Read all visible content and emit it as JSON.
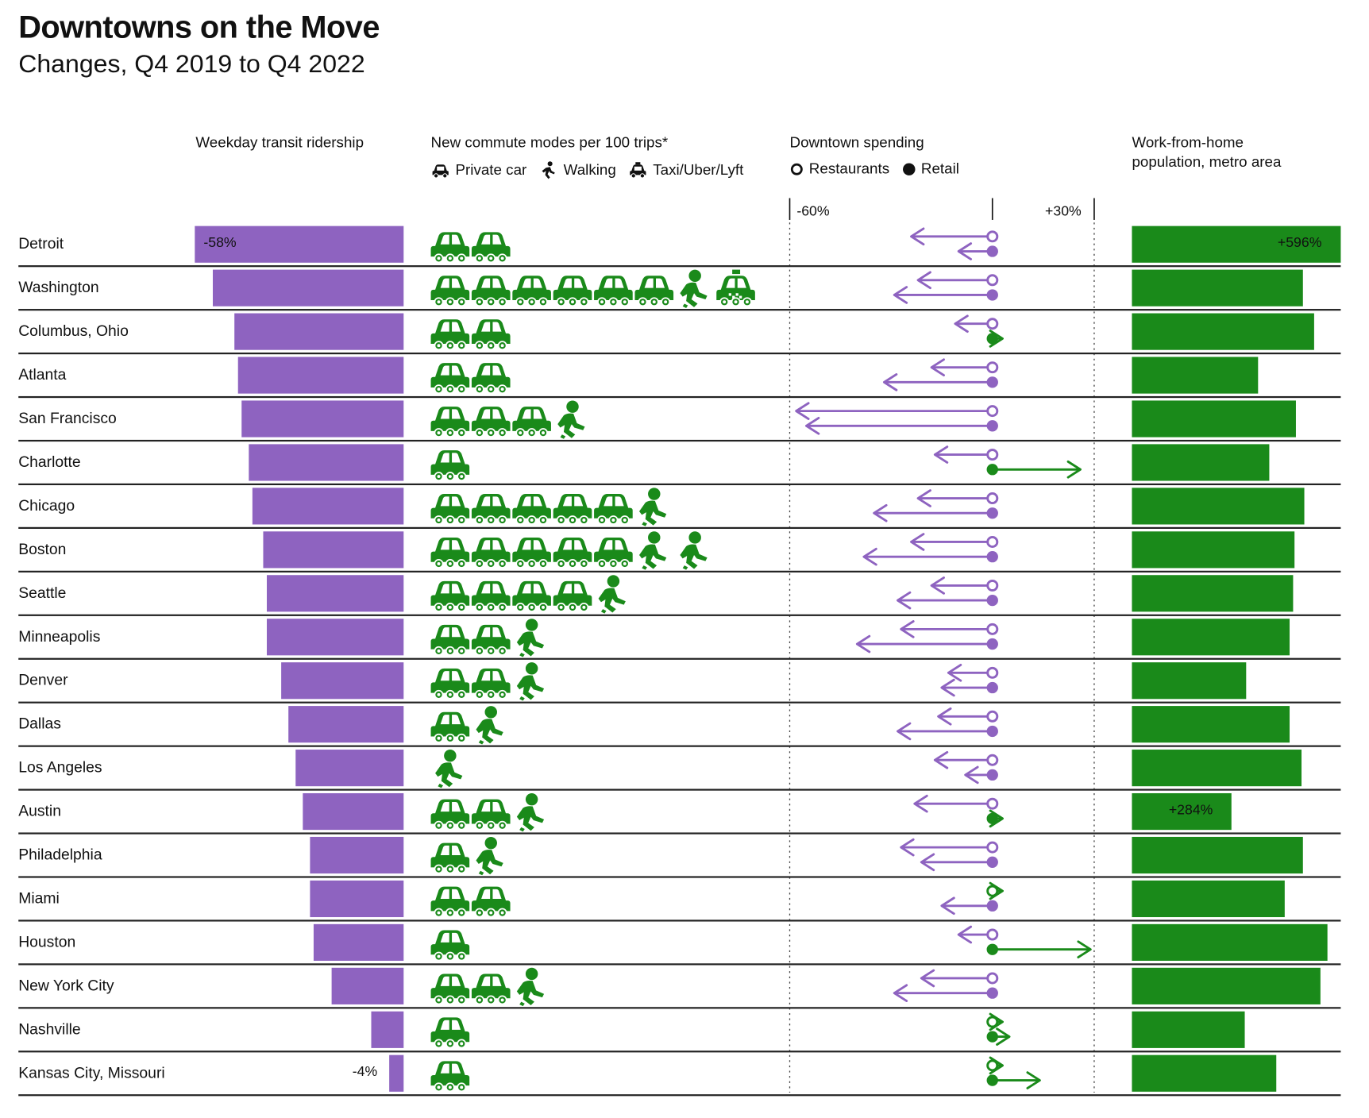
{
  "title": "Downtowns on the Move",
  "subtitle": "Changes, Q4 2019 to Q4 2022",
  "headers": {
    "transit": "Weekday transit ridership",
    "modes": "New commute modes per 100 trips*",
    "spending": "Downtown spending",
    "wfh_line1": "Work-from-home",
    "wfh_line2": "population, metro area"
  },
  "legend": {
    "car": "Private car",
    "walk": "Walking",
    "taxi": "Taxi/Uber/Lyft",
    "restaurants": "Restaurants",
    "retail": "Retail"
  },
  "spending_axis": {
    "min_label": "-60%",
    "max_label": "+30%",
    "min": -60,
    "max": 30
  },
  "colors": {
    "purple": "#8e63c0",
    "green": "#1a8a1a",
    "dark_green": "#107010",
    "rule": "#222222"
  },
  "chart_data": {
    "type": "bar",
    "title": "Downtowns on the Move",
    "subtitle": "Changes, Q4 2019 to Q4 2022",
    "cities": [
      "Detroit",
      "Washington",
      "Columbus, Ohio",
      "Atlanta",
      "San Francisco",
      "Charlotte",
      "Chicago",
      "Boston",
      "Seattle",
      "Minneapolis",
      "Denver",
      "Dallas",
      "Los Angeles",
      "Austin",
      "Philadelphia",
      "Miami",
      "Houston",
      "New York City",
      "Nashville",
      "Kansas City, Missouri"
    ],
    "transit_ridership_pct": [
      -58,
      -53,
      -47,
      -46,
      -45,
      -43,
      -42,
      -39,
      -38,
      -38,
      -34,
      -32,
      -30,
      -28,
      -26,
      -26,
      -25,
      -20,
      -9,
      -4
    ],
    "transit_labels": {
      "0": "-58%",
      "19": "-4%"
    },
    "commute_modes": [
      [
        "car",
        "car"
      ],
      [
        "car",
        "car",
        "car",
        "car",
        "car",
        "car",
        "walk",
        "taxi"
      ],
      [
        "car",
        "car"
      ],
      [
        "car",
        "car"
      ],
      [
        "car",
        "car",
        "car",
        "walk"
      ],
      [
        "car"
      ],
      [
        "car",
        "car",
        "car",
        "car",
        "car",
        "walk"
      ],
      [
        "car",
        "car",
        "car",
        "car",
        "car",
        "walk",
        "walk"
      ],
      [
        "car",
        "car",
        "car",
        "car",
        "walk"
      ],
      [
        "car",
        "car",
        "walk"
      ],
      [
        "car",
        "car",
        "walk"
      ],
      [
        "car",
        "walk"
      ],
      [
        "walk"
      ],
      [
        "car",
        "car",
        "walk"
      ],
      [
        "car",
        "walk"
      ],
      [
        "car",
        "car"
      ],
      [
        "car"
      ],
      [
        "car",
        "car",
        "walk"
      ],
      [
        "car"
      ],
      [
        "car"
      ]
    ],
    "restaurant_spending_pct": [
      -24,
      -22,
      -11,
      -18,
      -58,
      -17,
      -22,
      -24,
      -18,
      -27,
      -13,
      -16,
      -17,
      -23,
      -27,
      3,
      -10,
      -21,
      3,
      3
    ],
    "retail_spending_pct": [
      -10,
      -29,
      3,
      -32,
      -55,
      26,
      -35,
      -38,
      -28,
      -40,
      -15,
      -28,
      -8,
      3,
      -21,
      -15,
      29,
      -29,
      5,
      14
    ],
    "wfh_population_pct": [
      596,
      488,
      520,
      360,
      468,
      392,
      492,
      464,
      460,
      450,
      326,
      450,
      484,
      284,
      488,
      436,
      558,
      538,
      322,
      412
    ],
    "wfh_labels": {
      "0": "+596%",
      "13": "+284%"
    }
  }
}
